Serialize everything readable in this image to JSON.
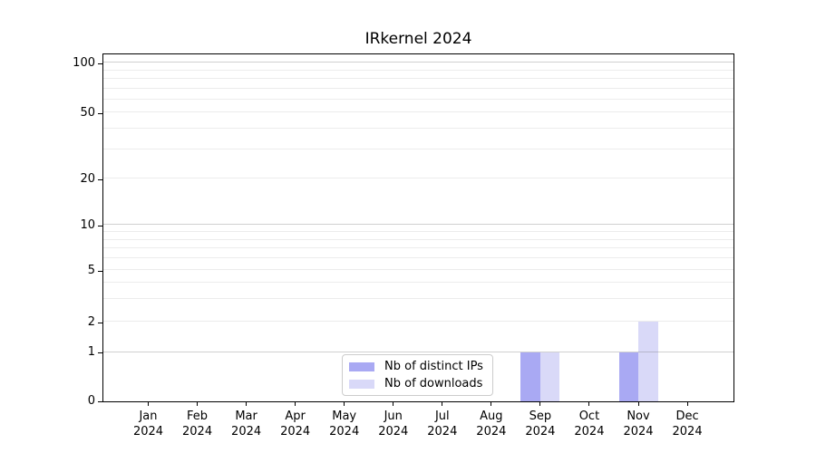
{
  "title": "IRkernel 2024",
  "chart_data": {
    "type": "bar",
    "title": "IRkernel 2024",
    "categories": [
      "Jan",
      "Feb",
      "Mar",
      "Apr",
      "May",
      "Jun",
      "Jul",
      "Aug",
      "Sep",
      "Oct",
      "Nov",
      "Dec"
    ],
    "year_label": "2024",
    "series": [
      {
        "name": "Nb of distinct IPs",
        "color": "#a9a9f3",
        "values": [
          0,
          0,
          0,
          0,
          0,
          0,
          0,
          0,
          1,
          0,
          1,
          0
        ]
      },
      {
        "name": "Nb of downloads",
        "color": "#d9d9f8",
        "values": [
          0,
          0,
          0,
          0,
          0,
          0,
          0,
          0,
          1,
          0,
          2,
          0
        ]
      }
    ],
    "y_ticks": [
      0,
      1,
      2,
      5,
      10,
      20,
      50,
      100
    ],
    "y_minor_ticks": [
      3,
      4,
      6,
      7,
      8,
      9,
      30,
      40,
      60,
      70,
      80,
      90
    ],
    "ylim": [
      0,
      114
    ],
    "yscale": "symlog-like",
    "grid": true,
    "legend_position": "lower-center",
    "colors": {
      "distinct_ips": "#a9a9f3",
      "downloads": "#d9d9f8",
      "major_grid": "#c6c6c6",
      "minor_grid": "#ececec",
      "spine": "#000000",
      "legend_border": "#cccccc"
    }
  }
}
